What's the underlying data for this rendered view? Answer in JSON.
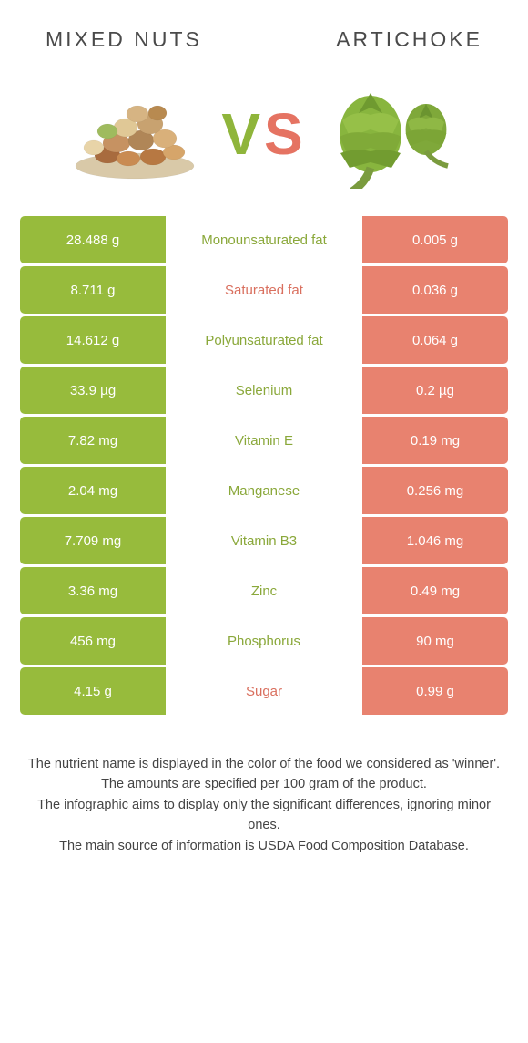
{
  "colors": {
    "green": "#97bb3c",
    "coral": "#e8826f",
    "mid_green_text": "#8aa83a",
    "mid_coral_text": "#d96f5e",
    "header_text": "#4a4a4a"
  },
  "header": {
    "left_title": "MIXED NUTS",
    "right_title": "ARTICHOKE"
  },
  "vs": {
    "v": "V",
    "s": "S"
  },
  "rows": [
    {
      "left": "28.488 g",
      "label": "Monounsaturated fat",
      "right": "0.005 g",
      "winner": "left"
    },
    {
      "left": "8.711 g",
      "label": "Saturated fat",
      "right": "0.036 g",
      "winner": "right"
    },
    {
      "left": "14.612 g",
      "label": "Polyunsaturated fat",
      "right": "0.064 g",
      "winner": "left"
    },
    {
      "left": "33.9 µg",
      "label": "Selenium",
      "right": "0.2 µg",
      "winner": "left"
    },
    {
      "left": "7.82 mg",
      "label": "Vitamin E",
      "right": "0.19 mg",
      "winner": "left"
    },
    {
      "left": "2.04 mg",
      "label": "Manganese",
      "right": "0.256 mg",
      "winner": "left"
    },
    {
      "left": "7.709 mg",
      "label": "Vitamin B3",
      "right": "1.046 mg",
      "winner": "left"
    },
    {
      "left": "3.36 mg",
      "label": "Zinc",
      "right": "0.49 mg",
      "winner": "left"
    },
    {
      "left": "456 mg",
      "label": "Phosphorus",
      "right": "90 mg",
      "winner": "left"
    },
    {
      "left": "4.15 g",
      "label": "Sugar",
      "right": "0.99 g",
      "winner": "right"
    }
  ],
  "footer": {
    "line1": "The nutrient name is displayed in the color of the food we considered as 'winner'.",
    "line2": "The amounts are specified per 100 gram of the product.",
    "line3": "The infographic aims to display only the significant differences, ignoring minor ones.",
    "line4": "The main source of information is USDA Food Composition Database."
  }
}
